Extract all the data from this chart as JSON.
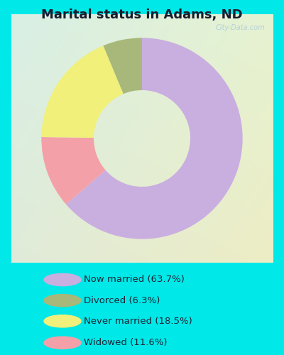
{
  "title": "Marital status in Adams, ND",
  "title_fontsize": 13,
  "title_fontweight": "bold",
  "slices": [
    63.7,
    11.6,
    18.5,
    6.3
  ],
  "colors": [
    "#c9aee0",
    "#f4a0a8",
    "#f0f07a",
    "#a8b87a"
  ],
  "labels": [
    "Now married (63.7%)",
    "Divorced (6.3%)",
    "Never married (18.5%)",
    "Widowed (11.6%)"
  ],
  "legend_colors": [
    "#c9aee0",
    "#a8b87a",
    "#f0f07a",
    "#f4a0a8"
  ],
  "outer_background": "#00e8e8",
  "chart_bg_tl": "#d8f0e8",
  "chart_bg_br": "#d8ecd8",
  "watermark": "City-Data.com",
  "donut_width": 0.52,
  "start_angle": 90
}
